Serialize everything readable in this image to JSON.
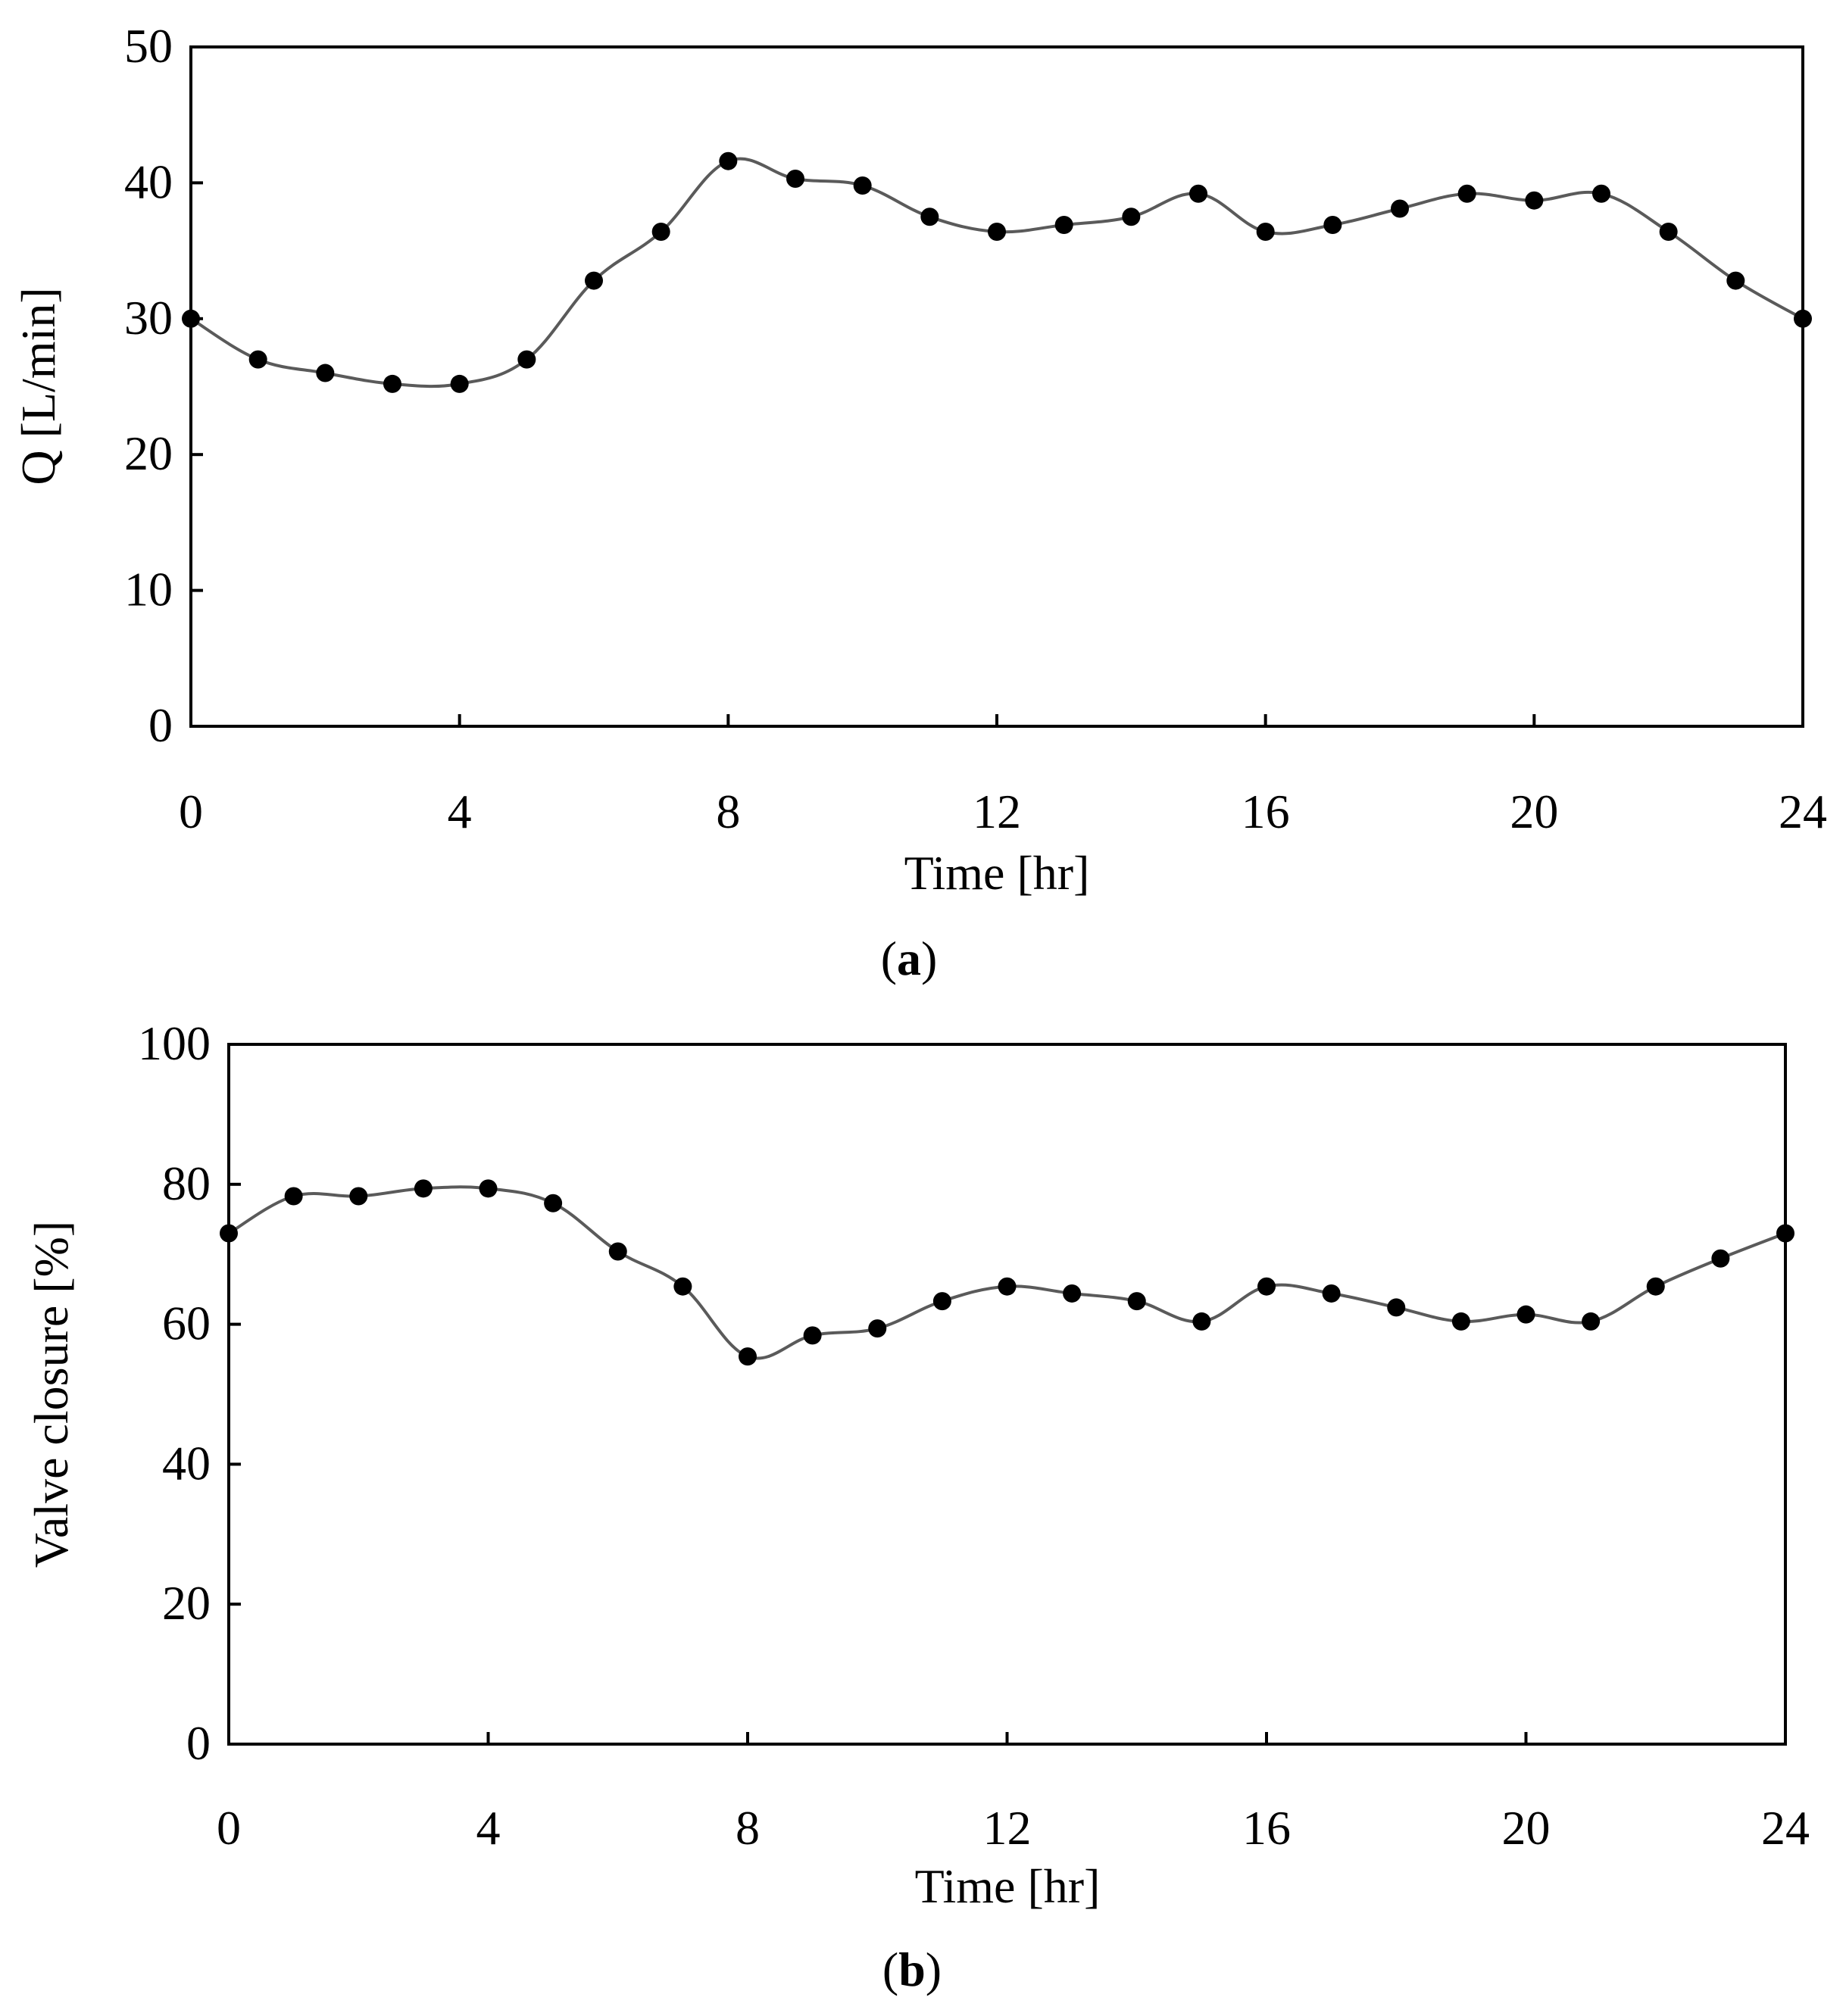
{
  "figure": {
    "panels": [
      "a",
      "b"
    ]
  },
  "chart_data": [
    {
      "type": "line",
      "panel_label": "a",
      "title": "",
      "xlabel": "Time [hr]",
      "ylabel": "Q [L/min]",
      "xlim": [
        0,
        24
      ],
      "ylim": [
        0,
        50
      ],
      "xticks": [
        0,
        4,
        8,
        12,
        16,
        20,
        24
      ],
      "yticks": [
        0,
        10,
        20,
        30,
        40,
        50
      ],
      "grid": false,
      "marker": "filled-circle",
      "line_color": "#5a5a5a",
      "marker_color": "#000000",
      "series": [
        {
          "name": "Q",
          "x": [
            0,
            1,
            2,
            3,
            4,
            5,
            6,
            7,
            8,
            9,
            10,
            11,
            12,
            13,
            14,
            15,
            16,
            17,
            18,
            19,
            20,
            21,
            22,
            23,
            24
          ],
          "values": [
            30,
            27,
            26,
            25.2,
            25.2,
            27,
            32.8,
            36.4,
            41.6,
            40.3,
            39.8,
            37.5,
            36.4,
            36.9,
            37.5,
            39.2,
            36.4,
            36.9,
            38.1,
            39.2,
            38.7,
            39.2,
            36.4,
            32.8,
            30
          ]
        }
      ]
    },
    {
      "type": "line",
      "panel_label": "b",
      "title": "",
      "xlabel": "Time [hr]",
      "ylabel": "Valve closure [%]",
      "xlim": [
        0,
        24
      ],
      "ylim": [
        0,
        100
      ],
      "xticks": [
        0,
        4,
        8,
        12,
        16,
        20,
        24
      ],
      "yticks": [
        0,
        20,
        40,
        60,
        80,
        100
      ],
      "grid": false,
      "marker": "filled-circle",
      "line_color": "#5a5a5a",
      "marker_color": "#000000",
      "series": [
        {
          "name": "Valve closure",
          "x": [
            0,
            1,
            2,
            3,
            4,
            5,
            6,
            7,
            8,
            9,
            10,
            11,
            12,
            13,
            14,
            15,
            16,
            17,
            18,
            19,
            20,
            21,
            22,
            23,
            24
          ],
          "values": [
            73,
            78.3,
            78.3,
            79.4,
            79.4,
            77.3,
            70.4,
            65.4,
            55.4,
            58.4,
            59.4,
            63.3,
            65.4,
            64.4,
            63.3,
            60.4,
            65.4,
            64.4,
            62.4,
            60.4,
            61.4,
            60.4,
            65.4,
            69.4,
            73
          ]
        }
      ]
    }
  ]
}
